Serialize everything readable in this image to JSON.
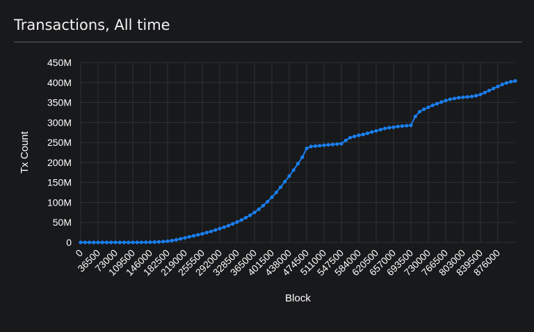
{
  "card": {
    "title": "Transactions, All time"
  },
  "chart_data": {
    "type": "line",
    "title": "Transactions, All time",
    "xlabel": "Block",
    "ylabel": "Tx Count",
    "xlim": [
      0,
      912500
    ],
    "ylim": [
      0,
      450000000
    ],
    "grid": true,
    "legend": "none",
    "color": "#1a7ff0",
    "x_tick_labels": [
      "0",
      "36500",
      "73000",
      "109500",
      "146000",
      "182500",
      "219000",
      "255500",
      "292000",
      "328500",
      "365000",
      "401500",
      "438000",
      "474500",
      "511000",
      "547500",
      "584000",
      "620500",
      "657000",
      "693500",
      "730000",
      "766500",
      "803000",
      "839500",
      "876000"
    ],
    "y_tick_labels": [
      "0",
      "50M",
      "100M",
      "150M",
      "200M",
      "250M",
      "300M",
      "350M",
      "400M",
      "450M"
    ],
    "y_tick_values": [
      0,
      50000000,
      100000000,
      150000000,
      200000000,
      250000000,
      300000000,
      350000000,
      400000000,
      450000000
    ],
    "series": [
      {
        "x": [
          0,
          9125,
          18250,
          27375,
          36500,
          45625,
          54750,
          63875,
          73000,
          82125,
          91250,
          100375,
          109500,
          118625,
          127750,
          136875,
          146000,
          155125,
          164250,
          173375,
          182500,
          191625,
          200750,
          209875,
          219000,
          228125,
          237250,
          246375,
          255500,
          264625,
          273750,
          282875,
          292000,
          301125,
          310250,
          319375,
          328500,
          337625,
          346750,
          355875,
          365000,
          374125,
          383250,
          392375,
          401500,
          410625,
          419750,
          428875,
          438000,
          447125,
          456250,
          465375,
          474500,
          483625,
          492750,
          501875,
          511000,
          520125,
          529250,
          538375,
          547500,
          556625,
          565750,
          574875,
          584000,
          593125,
          602250,
          611375,
          620500,
          629625,
          638750,
          647875,
          657000,
          666125,
          675250,
          684375,
          693500,
          702625,
          711750,
          720875,
          730000,
          739125,
          748250,
          757375,
          766500,
          775625,
          784750,
          793875,
          803000,
          812125,
          821250,
          830375,
          839500,
          848625,
          857750,
          866875,
          876000,
          885125,
          894250,
          903375,
          912500
        ],
        "y": [
          0,
          0,
          0,
          0,
          0,
          0,
          0,
          0,
          0,
          0,
          0,
          0,
          0,
          0,
          100000,
          300000,
          500000,
          900000,
          1300000,
          2000000,
          3000000,
          4500000,
          6500000,
          9000000,
          11500000,
          14000000,
          16500000,
          19000000,
          21500000,
          24500000,
          27500000,
          31000000,
          34500000,
          38000000,
          42000000,
          46500000,
          51000000,
          56000000,
          62000000,
          68000000,
          75000000,
          83000000,
          92000000,
          102000000,
          113000000,
          125000000,
          138000000,
          152000000,
          166000000,
          181000000,
          197000000,
          213000000,
          235000000,
          240000000,
          241000000,
          242000000,
          243000000,
          244000000,
          245000000,
          246000000,
          247000000,
          255000000,
          262000000,
          265000000,
          268000000,
          270000000,
          273000000,
          276000000,
          279000000,
          282000000,
          285000000,
          287000000,
          288000000,
          290000000,
          291000000,
          292000000,
          293000000,
          315000000,
          327000000,
          333000000,
          338000000,
          343000000,
          347000000,
          351000000,
          355000000,
          358000000,
          360000000,
          362000000,
          363000000,
          364000000,
          365000000,
          367000000,
          370000000,
          375000000,
          380000000,
          385000000,
          390000000,
          395000000,
          399000000,
          402000000,
          404000000
        ]
      }
    ]
  }
}
